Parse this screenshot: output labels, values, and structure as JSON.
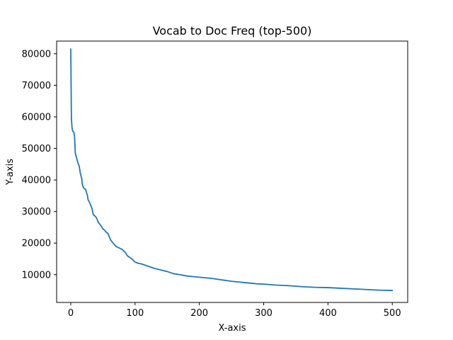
{
  "chart_data": {
    "type": "line",
    "title": "Vocab to Doc Freq (top-500)",
    "xlabel": "X-axis",
    "ylabel": "Y-axis",
    "xlim": [
      -22,
      524
    ],
    "ylim": [
      1200,
      84000
    ],
    "xticks": [
      0,
      100,
      200,
      300,
      400,
      500
    ],
    "xtick_labels": [
      "0",
      "100",
      "200",
      "300",
      "400",
      "500"
    ],
    "yticks": [
      10000,
      20000,
      30000,
      40000,
      50000,
      60000,
      70000,
      80000
    ],
    "ytick_labels": [
      "10000",
      "20000",
      "30000",
      "40000",
      "50000",
      "60000",
      "70000",
      "80000"
    ],
    "grid": false,
    "series": [
      {
        "color": "#1f77b4",
        "x": [
          0,
          1,
          2,
          3,
          5,
          6,
          7,
          9,
          11,
          13,
          15,
          17,
          18,
          20,
          21,
          23,
          26,
          27,
          29,
          31,
          33,
          35,
          38,
          40,
          43,
          45,
          47,
          50,
          53,
          55,
          58,
          62,
          64,
          65,
          68,
          70,
          75,
          80,
          85,
          88,
          90,
          95,
          100,
          105,
          110,
          120,
          130,
          140,
          150,
          160,
          170,
          180,
          190,
          200,
          210,
          220,
          230,
          240,
          250,
          260,
          270,
          280,
          290,
          300,
          320,
          340,
          360,
          380,
          400,
          420,
          440,
          460,
          480,
          500
        ],
        "y": [
          81500,
          59500,
          56500,
          55500,
          55000,
          53500,
          48500,
          47000,
          45500,
          44500,
          42000,
          40500,
          38500,
          37500,
          37300,
          37000,
          35000,
          33700,
          33000,
          32000,
          31000,
          29000,
          28500,
          28000,
          26500,
          26000,
          25500,
          24500,
          24000,
          23500,
          23000,
          21000,
          20500,
          20200,
          19500,
          19000,
          18500,
          18000,
          17000,
          16000,
          15700,
          15000,
          14000,
          13600,
          13400,
          12700,
          12000,
          11500,
          11000,
          10300,
          10000,
          9600,
          9400,
          9200,
          9000,
          8800,
          8500,
          8200,
          7900,
          7700,
          7500,
          7300,
          7100,
          7000,
          6700,
          6500,
          6200,
          6000,
          5900,
          5700,
          5500,
          5300,
          5100,
          5000
        ]
      }
    ]
  }
}
